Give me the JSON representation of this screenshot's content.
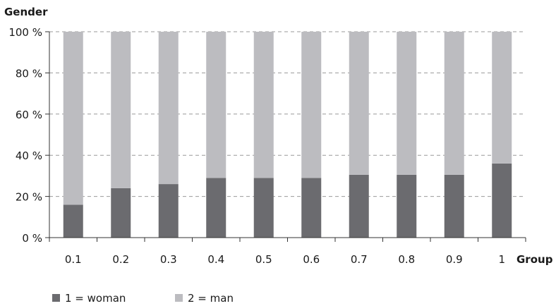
{
  "chart_data": {
    "type": "bar",
    "stacked": true,
    "percent": true,
    "title": "Gender",
    "xlabel": "Group",
    "ylabel": "",
    "categories": [
      "0.1",
      "0.2",
      "0.3",
      "0.4",
      "0.5",
      "0.6",
      "0.7",
      "0.8",
      "0.9",
      "1"
    ],
    "ylim": [
      0,
      100
    ],
    "yticks": [
      "0 %",
      "20 %",
      "40 %",
      "60 %",
      "80 %",
      "100 %"
    ],
    "series": [
      {
        "name": "1 = woman",
        "color": "#6b6b6f",
        "values": [
          16,
          24,
          26,
          29,
          29,
          29,
          30.5,
          30.5,
          30.5,
          36
        ]
      },
      {
        "name": "2 = man",
        "color": "#bcbcc0",
        "values": [
          84,
          76,
          74,
          71,
          71,
          71,
          69.5,
          69.5,
          69.5,
          64
        ]
      }
    ],
    "grid": true,
    "legend": "bottom-left"
  }
}
